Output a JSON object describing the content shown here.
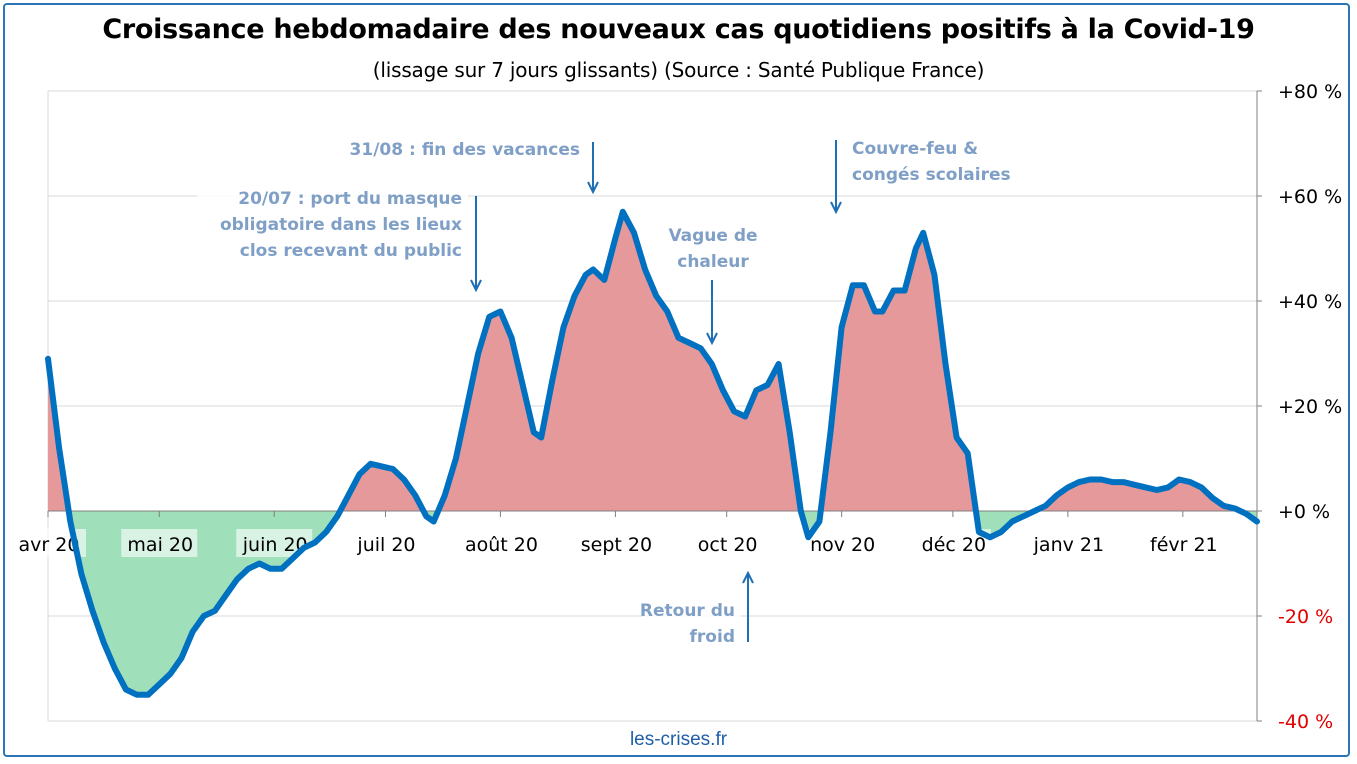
{
  "chart_data": {
    "type": "area",
    "title": "Croissance hebdomadaire des nouveaux cas quotidiens positifs à la Covid-19",
    "subtitle": "(lissage sur 7 jours glissants) (Source : Santé Publique France)",
    "source": "les-crises.fr",
    "x_ticks": [
      {
        "date": "2020-04-01",
        "label": "avr 20"
      },
      {
        "date": "2020-05-01",
        "label": "mai 20"
      },
      {
        "date": "2020-06-01",
        "label": "juin 20"
      },
      {
        "date": "2020-07-01",
        "label": "juil 20"
      },
      {
        "date": "2020-08-01",
        "label": "août 20"
      },
      {
        "date": "2020-09-01",
        "label": "sept 20"
      },
      {
        "date": "2020-10-01",
        "label": "oct 20"
      },
      {
        "date": "2020-11-01",
        "label": "nov 20"
      },
      {
        "date": "2020-12-01",
        "label": "déc 20"
      },
      {
        "date": "2021-01-01",
        "label": "janv 21"
      },
      {
        "date": "2021-02-01",
        "label": "févr 21"
      }
    ],
    "xlim": [
      "2020-04-01",
      "2021-02-21"
    ],
    "ylim": [
      -40,
      80
    ],
    "y_ticks": [
      {
        "value": 80,
        "label": "+80 %"
      },
      {
        "value": 60,
        "label": "+60 %"
      },
      {
        "value": 40,
        "label": "+40 %"
      },
      {
        "value": 20,
        "label": "+20 %"
      },
      {
        "value": 0,
        "label": "+0 %"
      },
      {
        "value": -20,
        "label": "-20 %"
      },
      {
        "value": -40,
        "label": "-40 %"
      }
    ],
    "grid": true,
    "colors": {
      "line": "#0070c0",
      "positive_fill": "#e6999a",
      "negative_fill": "#9fdfb9",
      "grid": "#d9d9d9",
      "negative_label": "#e00000",
      "annotation": "#7f9fc6",
      "arrow": "#1f6fb5"
    },
    "series": [
      {
        "points": [
          [
            "2020-04-01",
            29
          ],
          [
            "2020-04-04",
            12
          ],
          [
            "2020-04-07",
            -2
          ],
          [
            "2020-04-10",
            -12
          ],
          [
            "2020-04-13",
            -19
          ],
          [
            "2020-04-16",
            -25
          ],
          [
            "2020-04-19",
            -30
          ],
          [
            "2020-04-22",
            -34
          ],
          [
            "2020-04-25",
            -35
          ],
          [
            "2020-04-28",
            -35
          ],
          [
            "2020-05-01",
            -33
          ],
          [
            "2020-05-04",
            -31
          ],
          [
            "2020-05-07",
            -28
          ],
          [
            "2020-05-10",
            -23
          ],
          [
            "2020-05-13",
            -20
          ],
          [
            "2020-05-16",
            -19
          ],
          [
            "2020-05-19",
            -16
          ],
          [
            "2020-05-22",
            -13
          ],
          [
            "2020-05-25",
            -11
          ],
          [
            "2020-05-28",
            -10
          ],
          [
            "2020-05-31",
            -11
          ],
          [
            "2020-06-03",
            -11
          ],
          [
            "2020-06-06",
            -9
          ],
          [
            "2020-06-09",
            -7
          ],
          [
            "2020-06-12",
            -6
          ],
          [
            "2020-06-15",
            -4
          ],
          [
            "2020-06-18",
            -1
          ],
          [
            "2020-06-21",
            3
          ],
          [
            "2020-06-24",
            7
          ],
          [
            "2020-06-27",
            9
          ],
          [
            "2020-06-30",
            8.5
          ],
          [
            "2020-07-03",
            8
          ],
          [
            "2020-07-06",
            6
          ],
          [
            "2020-07-09",
            3
          ],
          [
            "2020-07-12",
            -1
          ],
          [
            "2020-07-14",
            -2
          ],
          [
            "2020-07-17",
            3
          ],
          [
            "2020-07-20",
            10
          ],
          [
            "2020-07-23",
            20
          ],
          [
            "2020-07-26",
            30
          ],
          [
            "2020-07-29",
            37
          ],
          [
            "2020-08-01",
            38
          ],
          [
            "2020-08-04",
            33
          ],
          [
            "2020-08-07",
            24
          ],
          [
            "2020-08-10",
            15
          ],
          [
            "2020-08-12",
            14
          ],
          [
            "2020-08-15",
            25
          ],
          [
            "2020-08-18",
            35
          ],
          [
            "2020-08-21",
            41
          ],
          [
            "2020-08-24",
            45
          ],
          [
            "2020-08-26",
            46
          ],
          [
            "2020-08-29",
            44
          ],
          [
            "2020-09-01",
            52
          ],
          [
            "2020-09-03",
            57
          ],
          [
            "2020-09-06",
            53
          ],
          [
            "2020-09-09",
            46
          ],
          [
            "2020-09-12",
            41
          ],
          [
            "2020-09-15",
            38
          ],
          [
            "2020-09-18",
            33
          ],
          [
            "2020-09-21",
            32
          ],
          [
            "2020-09-24",
            31
          ],
          [
            "2020-09-27",
            28
          ],
          [
            "2020-09-30",
            23
          ],
          [
            "2020-10-03",
            19
          ],
          [
            "2020-10-06",
            18
          ],
          [
            "2020-10-09",
            23
          ],
          [
            "2020-10-12",
            24
          ],
          [
            "2020-10-15",
            28
          ],
          [
            "2020-10-18",
            15
          ],
          [
            "2020-10-21",
            0
          ],
          [
            "2020-10-23",
            -5
          ],
          [
            "2020-10-26",
            -2
          ],
          [
            "2020-10-29",
            15
          ],
          [
            "2020-11-01",
            35
          ],
          [
            "2020-11-04",
            43
          ],
          [
            "2020-11-07",
            43
          ],
          [
            "2020-11-10",
            38
          ],
          [
            "2020-11-12",
            38
          ],
          [
            "2020-11-15",
            42
          ],
          [
            "2020-11-18",
            42
          ],
          [
            "2020-11-21",
            50
          ],
          [
            "2020-11-23",
            53
          ],
          [
            "2020-11-26",
            45
          ],
          [
            "2020-11-29",
            28
          ],
          [
            "2020-12-02",
            14
          ],
          [
            "2020-12-05",
            11
          ],
          [
            "2020-12-08",
            -4
          ],
          [
            "2020-12-11",
            -5
          ],
          [
            "2020-12-14",
            -4
          ],
          [
            "2020-12-17",
            -2
          ],
          [
            "2020-12-20",
            -1
          ],
          [
            "2020-12-23",
            0
          ],
          [
            "2020-12-26",
            1
          ],
          [
            "2020-12-29",
            3
          ],
          [
            "2021-01-01",
            4.5
          ],
          [
            "2021-01-04",
            5.5
          ],
          [
            "2021-01-07",
            6
          ],
          [
            "2021-01-10",
            6
          ],
          [
            "2021-01-13",
            5.5
          ],
          [
            "2021-01-16",
            5.5
          ],
          [
            "2021-01-19",
            5
          ],
          [
            "2021-01-22",
            4.5
          ],
          [
            "2021-01-25",
            4
          ],
          [
            "2021-01-28",
            4.5
          ],
          [
            "2021-01-31",
            6
          ],
          [
            "2021-02-03",
            5.5
          ],
          [
            "2021-02-06",
            4.5
          ],
          [
            "2021-02-09",
            2.5
          ],
          [
            "2021-02-12",
            1
          ],
          [
            "2021-02-15",
            0.5
          ],
          [
            "2021-02-18",
            -0.5
          ],
          [
            "2021-02-21",
            -2
          ]
        ]
      }
    ],
    "annotations": [
      {
        "lines": [
          "20/07 : port du masque",
          "obligatoire  dans les lieux",
          "clos recevant du public"
        ],
        "align": "end"
      },
      {
        "lines": [
          "31/08 : fin des vacances"
        ],
        "align": "end"
      },
      {
        "lines": [
          "Vague de",
          "chaleur"
        ],
        "align": "middle"
      },
      {
        "lines": [
          "Couvre-feu  &",
          "congés scolaires"
        ],
        "align": "start"
      },
      {
        "lines": [
          "Retour du",
          "froid"
        ],
        "align": "end"
      }
    ]
  }
}
